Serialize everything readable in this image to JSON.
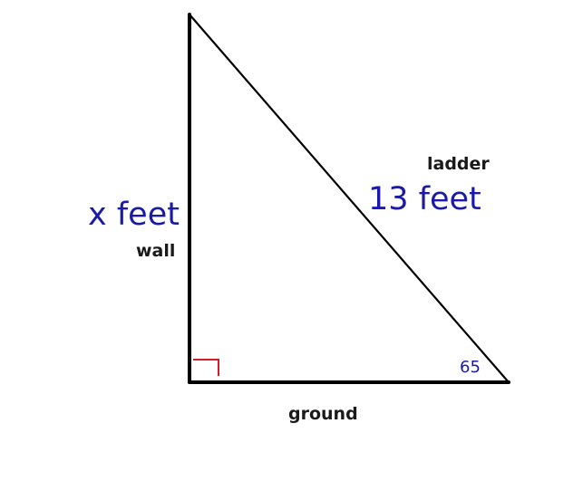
{
  "labels": {
    "wall_length": "x feet",
    "ladder_length": "13 feet",
    "ladder": "ladder",
    "wall": "wall",
    "ground": "ground",
    "angle": "65"
  },
  "colors": {
    "lines": "#000000",
    "measurement_text": "#1a1aa6",
    "right_angle_marker": "#d21f26",
    "side_names": "#1a1a1a"
  }
}
